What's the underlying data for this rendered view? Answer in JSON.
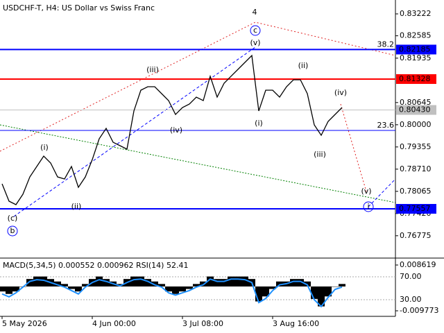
{
  "chart_data": {
    "type": "line",
    "title": "USDCHF-T, H4:  US Dollar vs Swiss Franc",
    "color": "#000000",
    "x": [
      "5 May 2026",
      null,
      null,
      null,
      null,
      null,
      null,
      null,
      null,
      null,
      null,
      null,
      null,
      "4 Jun 00:00",
      null,
      null,
      null,
      null,
      null,
      null,
      null,
      null,
      null,
      null,
      null,
      null,
      "3 Jul 08:00",
      null,
      null,
      null,
      null,
      null,
      null,
      null,
      null,
      null,
      null,
      null,
      null,
      "3 Aug 16:00",
      null,
      null,
      null,
      null,
      null,
      null,
      null,
      null,
      null,
      null
    ],
    "values": [
      0.78283,
      0.77779,
      0.77678,
      0.7798,
      0.78484,
      0.78787,
      0.79089,
      0.78888,
      0.78484,
      0.78424,
      0.78787,
      0.78182,
      0.78484,
      0.78988,
      0.79593,
      0.79896,
      0.79492,
      0.79392,
      0.79291,
      0.804,
      0.81004,
      0.81105,
      0.81105,
      0.80904,
      0.80702,
      0.80299,
      0.805,
      0.80601,
      0.80803,
      0.80702,
      0.81408,
      0.80803,
      0.81206,
      0.81408,
      0.81609,
      0.81811,
      0.82012,
      0.804,
      0.81004,
      0.81004,
      0.80803,
      0.81105,
      0.81307,
      0.81307,
      0.80904,
      0.79996,
      0.79694,
      0.80097,
      0.80299,
      0.805
    ],
    "ylim": [
      0.76126,
      0.83625
    ],
    "yticks": [
      0.83222,
      0.82585,
      0.81935,
      0.80645,
      {
        "value": 0.8,
        "label": "0.80000"
      },
      0.79355,
      {
        "value": 0.7871,
        "label": "0.78710"
      },
      0.78065,
      {
        "value": 0.7742,
        "label": "0.77420"
      },
      0.76775
    ],
    "levels": [
      {
        "value": 0.82185,
        "color": "#0000ff",
        "weight": 2,
        "fib": "38.2"
      },
      {
        "value": 0.81328,
        "color": "#ff0000",
        "weight": 2
      },
      {
        "value": 0.8043,
        "label": "0.80430",
        "color": "#c0c0c0",
        "weight": 1
      },
      {
        "value": 0.79836,
        "color": "#0000ff",
        "weight": 1,
        "fib": "23.6"
      },
      {
        "value": 0.77557,
        "color": "#0000ff",
        "weight": 2
      }
    ],
    "annotations": [
      {
        "text": "4",
        "color": "#b5532a"
      },
      {
        "text": "c",
        "color": "#0000ff",
        "circled": true
      },
      {
        "text": "(v)",
        "color": "#e02020"
      },
      {
        "text": "(iii)",
        "color": "#e02020"
      },
      {
        "text": "(ii)",
        "color": "#e02020"
      },
      {
        "text": "(iv)",
        "color": "#e02020"
      },
      {
        "text": "(i)",
        "color": "#e02020"
      },
      {
        "text": "(ii)",
        "color": "#e02020"
      },
      {
        "text": "(iv)",
        "color": "#e02020"
      },
      {
        "text": "(i)",
        "color": "#e02020"
      },
      {
        "text": "(iii)",
        "color": "#e02020"
      },
      {
        "text": "(v)",
        "color": "#e02020"
      },
      {
        "text": "(c)",
        "color": "#e02020"
      },
      {
        "text": "b",
        "color": "#0000ff",
        "circled": true
      },
      {
        "text": "i",
        "color": "#0000ff",
        "circled": true
      }
    ],
    "indicator": {
      "label": "MACD(5,34,5) 0.000552 0.000962 RSI(14) 52.41",
      "ylim": [
        -0.01172,
        0.01057
      ],
      "yticks": [
        0.008619,
        -0.009773
      ],
      "y2lim": [
        2.1,
        99.1
      ],
      "y2ticks": [
        {
          "value": 70,
          "label": "70.00"
        },
        {
          "value": 30,
          "label": "30.00"
        }
      ],
      "macd": [
        -0.002,
        -0.003,
        -0.002,
        0.0,
        0.003,
        0.004,
        0.004,
        0.003,
        0.002,
        0.001,
        -0.001,
        -0.002,
        0.001,
        0.003,
        0.004,
        0.003,
        0.002,
        0.001,
        0.003,
        0.004,
        0.004,
        0.003,
        0.002,
        0.001,
        -0.002,
        -0.003,
        -0.002,
        -0.001,
        0.001,
        0.002,
        0.004,
        0.003,
        0.003,
        0.004,
        0.004,
        0.004,
        0.003,
        -0.006,
        -0.004,
        -0.001,
        0.002,
        0.002,
        0.003,
        0.003,
        0.002,
        -0.005,
        -0.008,
        -0.004,
        0.0,
        0.001
      ],
      "rsi": [
        40,
        35,
        42,
        52,
        62,
        65,
        64,
        60,
        56,
        52,
        46,
        40,
        52,
        60,
        65,
        62,
        58,
        54,
        60,
        65,
        66,
        62,
        56,
        52,
        42,
        38,
        42,
        46,
        52,
        56,
        66,
        62,
        62,
        66,
        66,
        65,
        60,
        25,
        32,
        46,
        56,
        58,
        62,
        62,
        56,
        30,
        18,
        34,
        48,
        52
      ],
      "macd_color": "#000000",
      "rsi_color": "#1e90ff"
    }
  }
}
